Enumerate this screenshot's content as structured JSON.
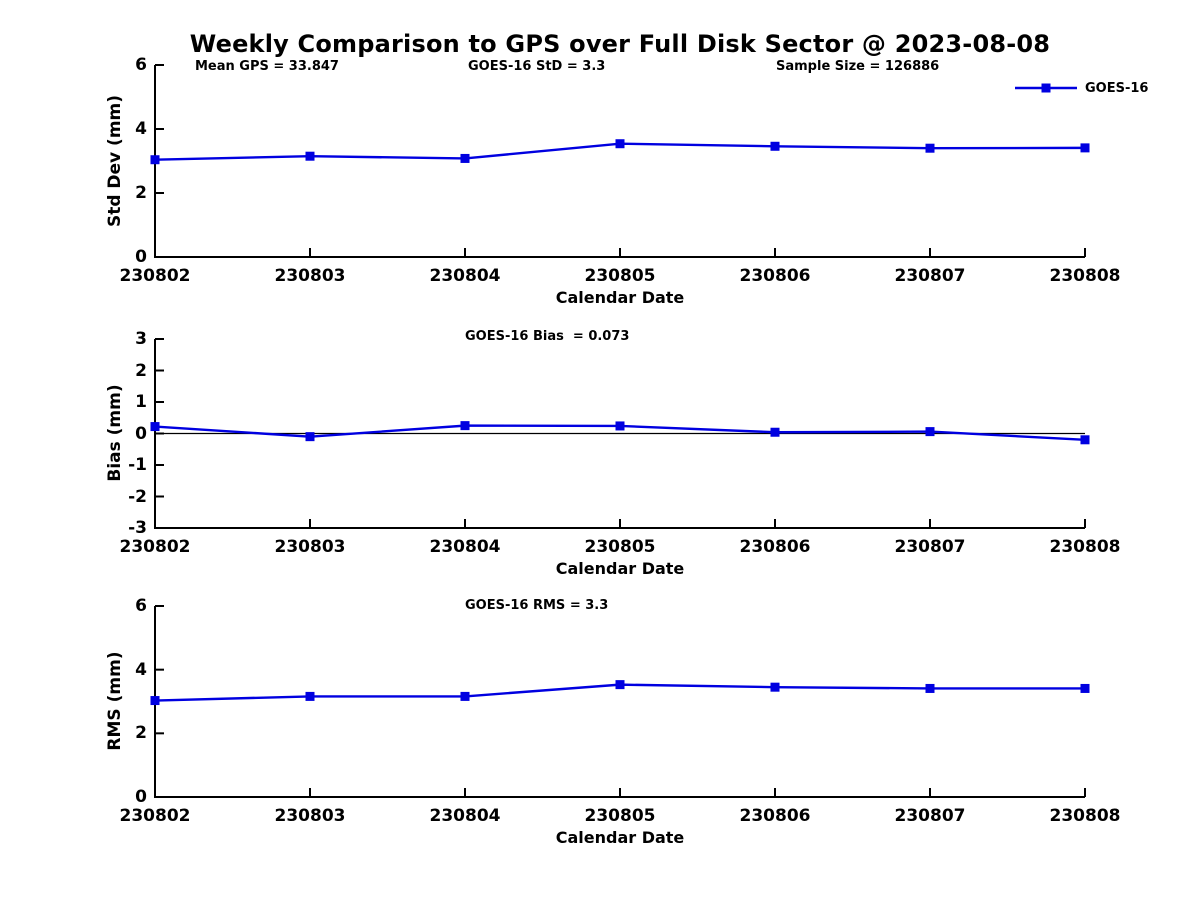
{
  "page": {
    "title": "Weekly Comparison to GPS over Full Disk Sector @ 2023-08-08"
  },
  "legend": {
    "label": "GOES-16",
    "color": "#0000e0",
    "position": "top-right",
    "marker": "filled-square"
  },
  "chart_data": [
    {
      "type": "line",
      "subplot": "top",
      "annotations": [
        "Mean GPS = 33.847",
        "GOES-16 StD = 3.3",
        "Sample Size = 126886"
      ],
      "categories": [
        "230802",
        "230803",
        "230804",
        "230805",
        "230806",
        "230807",
        "230808"
      ],
      "series": [
        {
          "name": "GOES-16",
          "values": [
            3.04,
            3.15,
            3.08,
            3.54,
            3.46,
            3.4,
            3.41
          ]
        }
      ],
      "xlabel": "Calendar Date",
      "ylabel": "Std Dev (mm)",
      "ylim": [
        0,
        6
      ],
      "yticks": [
        0,
        2,
        4,
        6
      ],
      "grid": false,
      "zero_line": false
    },
    {
      "type": "line",
      "subplot": "middle",
      "annotations": [
        "GOES-16 Bias  = 0.073"
      ],
      "categories": [
        "230802",
        "230803",
        "230804",
        "230805",
        "230806",
        "230807",
        "230808"
      ],
      "series": [
        {
          "name": "GOES-16",
          "values": [
            0.22,
            -0.1,
            0.25,
            0.24,
            0.04,
            0.06,
            -0.2
          ]
        }
      ],
      "xlabel": "Calendar Date",
      "ylabel": "Bias (mm)",
      "ylim": [
        -3,
        3
      ],
      "yticks": [
        -3,
        -2,
        -1,
        0,
        1,
        2,
        3
      ],
      "grid": false,
      "zero_line": true
    },
    {
      "type": "line",
      "subplot": "bottom",
      "annotations": [
        "GOES-16 RMS = 3.3"
      ],
      "categories": [
        "230802",
        "230803",
        "230804",
        "230805",
        "230806",
        "230807",
        "230808"
      ],
      "series": [
        {
          "name": "GOES-16",
          "values": [
            3.03,
            3.16,
            3.16,
            3.53,
            3.45,
            3.41,
            3.41
          ]
        }
      ],
      "xlabel": "Calendar Date",
      "ylabel": "RMS (mm)",
      "ylim": [
        0,
        6
      ],
      "yticks": [
        0,
        2,
        4,
        6
      ],
      "grid": false,
      "zero_line": false
    }
  ]
}
